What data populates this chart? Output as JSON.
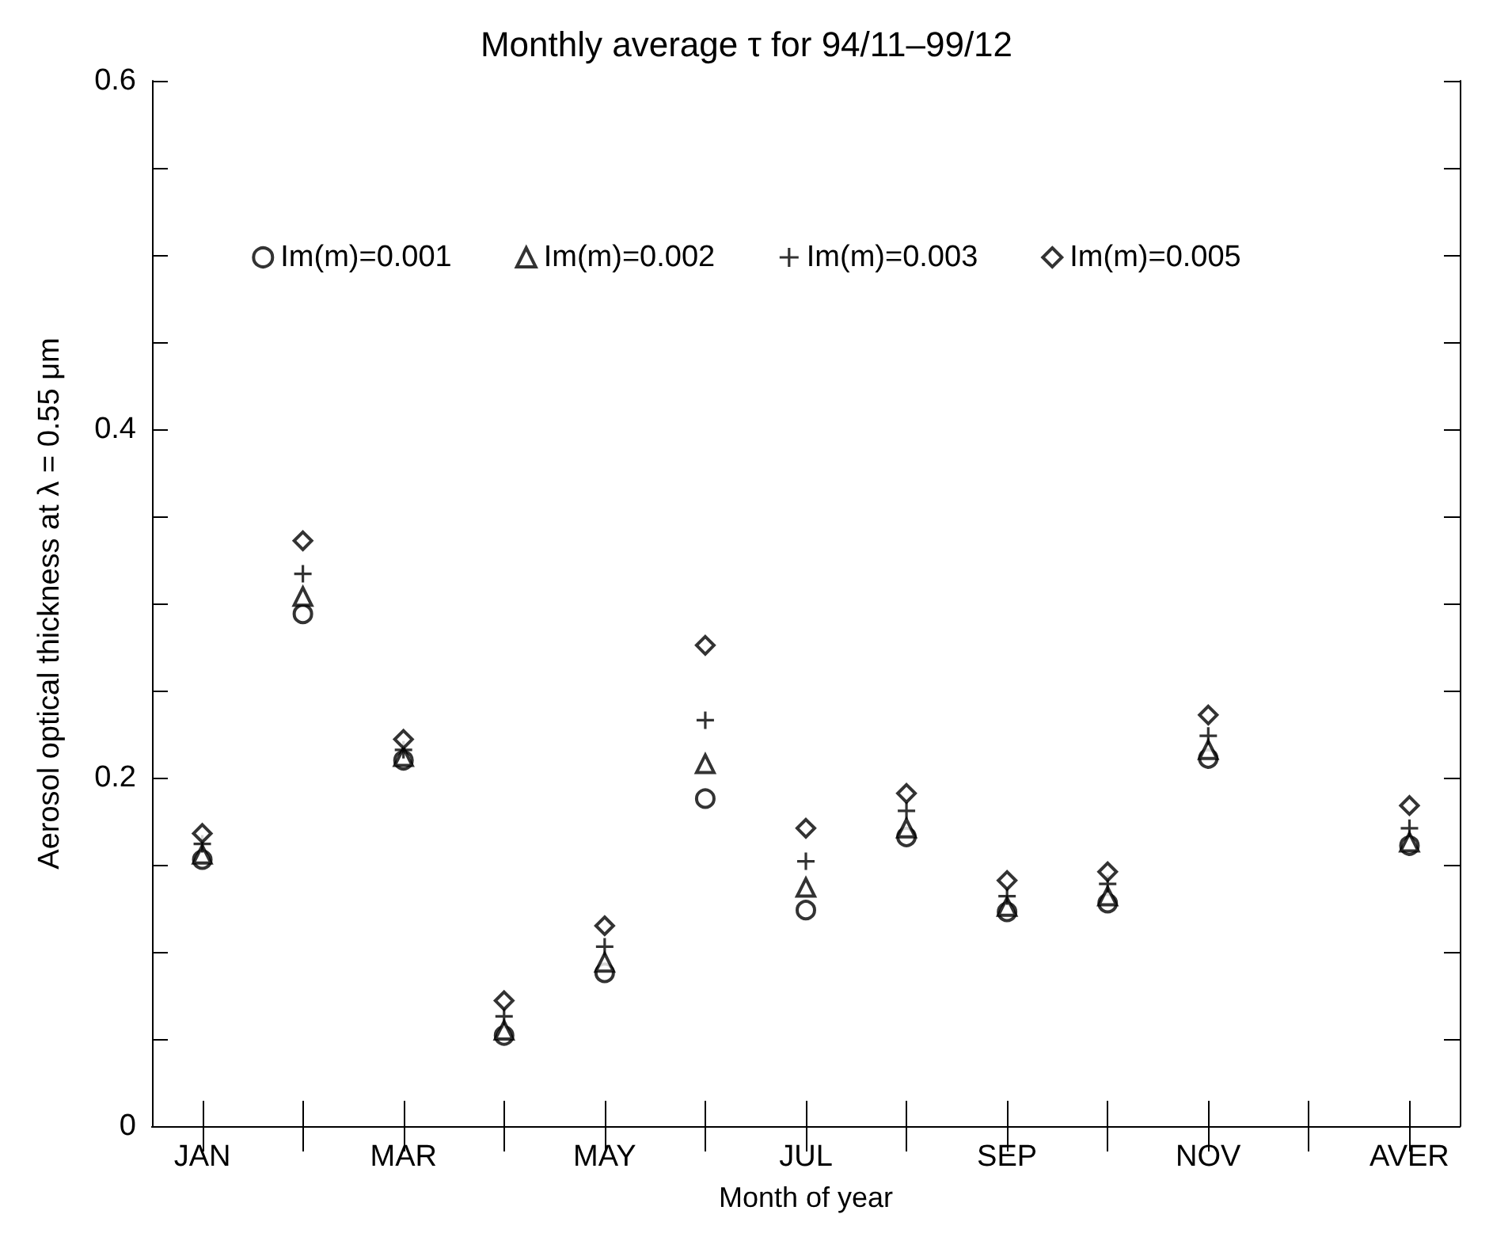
{
  "chart_data": {
    "type": "scatter",
    "title": "Monthly average τ for 94/11–99/12",
    "xlabel": "Month of year",
    "ylabel": "Aerosol optical thickness at λ = 0.55 μm",
    "categories": [
      "JAN",
      null,
      "MAR",
      null,
      "MAY",
      null,
      "JUL",
      null,
      "SEP",
      null,
      "NOV",
      null,
      "AVER"
    ],
    "series": [
      {
        "name": "Im(m)=0.001",
        "color": "#000000",
        "marker": "circle",
        "values": [
          0.153,
          0.294,
          0.21,
          0.052,
          0.088,
          0.188,
          0.124,
          0.166,
          0.123,
          0.128,
          0.211,
          null,
          0.161
        ]
      },
      {
        "name": "Im(m)=0.002",
        "color": "#000000",
        "marker": "triangle",
        "values": [
          0.156,
          0.304,
          0.212,
          0.055,
          0.094,
          0.208,
          0.137,
          0.171,
          0.126,
          0.132,
          0.216,
          null,
          0.163
        ]
      },
      {
        "name": "Im(m)=0.003",
        "color": "#000000",
        "marker": "cross",
        "values": [
          0.162,
          0.317,
          0.216,
          0.063,
          0.103,
          0.233,
          0.152,
          0.181,
          0.132,
          0.139,
          0.224,
          null,
          0.171
        ]
      },
      {
        "name": "Im(m)=0.005",
        "color": "#000000",
        "marker": "diamond",
        "values": [
          0.168,
          0.336,
          0.222,
          0.072,
          0.115,
          0.276,
          0.171,
          0.191,
          0.141,
          0.146,
          0.236,
          null,
          0.184
        ]
      }
    ],
    "ylim": [
      0,
      0.6
    ],
    "yticks": [
      0,
      {
        "value": 0.05,
        "label": null
      },
      {
        "value": 0.1,
        "label": null
      },
      {
        "value": 0.15,
        "label": null
      },
      0.2,
      {
        "value": 0.25,
        "label": null
      },
      {
        "value": 0.3,
        "label": null
      },
      {
        "value": 0.35,
        "label": null
      },
      0.4,
      {
        "value": 0.45,
        "label": null
      },
      {
        "value": 0.5,
        "label": null
      },
      {
        "value": 0.55,
        "label": null
      },
      0.6
    ],
    "grid": false,
    "legend": "top"
  }
}
